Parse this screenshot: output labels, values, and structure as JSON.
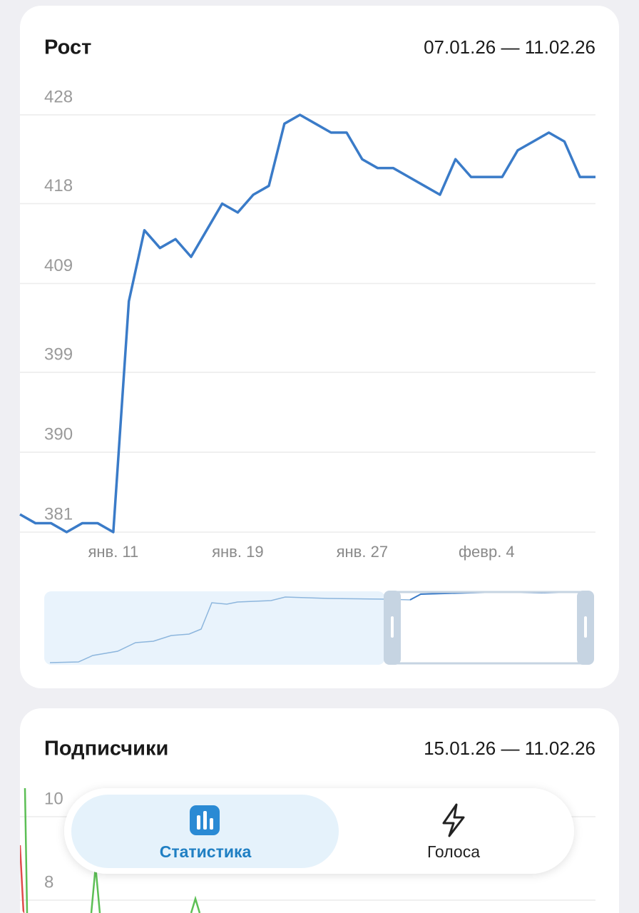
{
  "chart_data": [
    {
      "type": "line",
      "title": "Рост",
      "date_range": "07.01.26 — 11.02.26",
      "categories": [
        null,
        null,
        null,
        null,
        null,
        null,
        "янв. 11",
        null,
        null,
        null,
        null,
        null,
        null,
        null,
        "янв. 19",
        null,
        null,
        null,
        null,
        null,
        null,
        null,
        "янв. 27",
        null,
        null,
        null,
        null,
        null,
        null,
        null,
        "февр. 4",
        null,
        null,
        null,
        null,
        null,
        null,
        null
      ],
      "series": [
        {
          "color": "#3a7bc8",
          "values": [
            383,
            382,
            382,
            381,
            382,
            382,
            381,
            407,
            415,
            413,
            414,
            412,
            415,
            418,
            417,
            419,
            420,
            427,
            428,
            427,
            426,
            426,
            423,
            422,
            422,
            421,
            420,
            419,
            423,
            421,
            421,
            421,
            424,
            425,
            426,
            425,
            421,
            421
          ]
        }
      ],
      "ylim": [
        381,
        428
      ],
      "yticks": [
        381,
        390,
        399,
        409,
        418,
        428
      ],
      "grid": true
    },
    {
      "type": "line",
      "title": "Подписчики",
      "date_range": "15.01.26 — 11.02.26",
      "ylim": [
        0,
        10
      ],
      "yticks": [
        8,
        10
      ],
      "grid": true
    }
  ],
  "nav": {
    "items": [
      "Статистика",
      "Голоса"
    ],
    "active": 0
  }
}
